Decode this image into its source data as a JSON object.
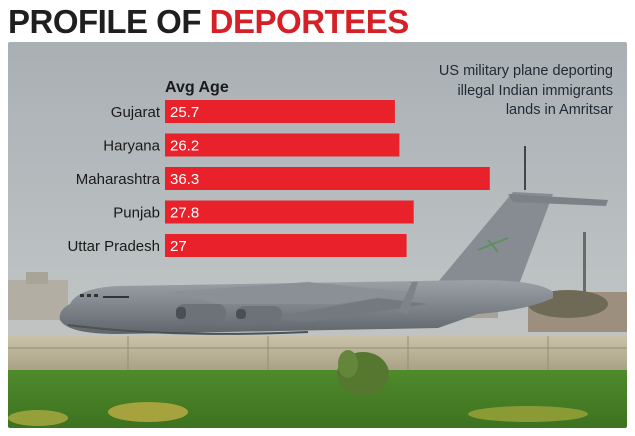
{
  "header": {
    "title_part1": "PROFILE OF ",
    "title_part2": "DEPORTEES",
    "title_color": "#d62027"
  },
  "photo_caption": "US military plane deporting illegal Indian immigrants lands in Amritsar",
  "chart_data": {
    "type": "bar",
    "orientation": "horizontal",
    "title": "Avg Age",
    "categories": [
      "Gujarat",
      "Haryana",
      "Maharashtra",
      "Punjab",
      "Uttar Pradesh"
    ],
    "values": [
      25.7,
      26.2,
      36.3,
      27.8,
      27
    ],
    "value_labels": [
      "25.7",
      "26.2",
      "36.3",
      "27.8",
      "27"
    ],
    "bar_color": "#e8212b",
    "xlim": [
      0,
      38
    ],
    "grid": false,
    "legend": "none"
  }
}
